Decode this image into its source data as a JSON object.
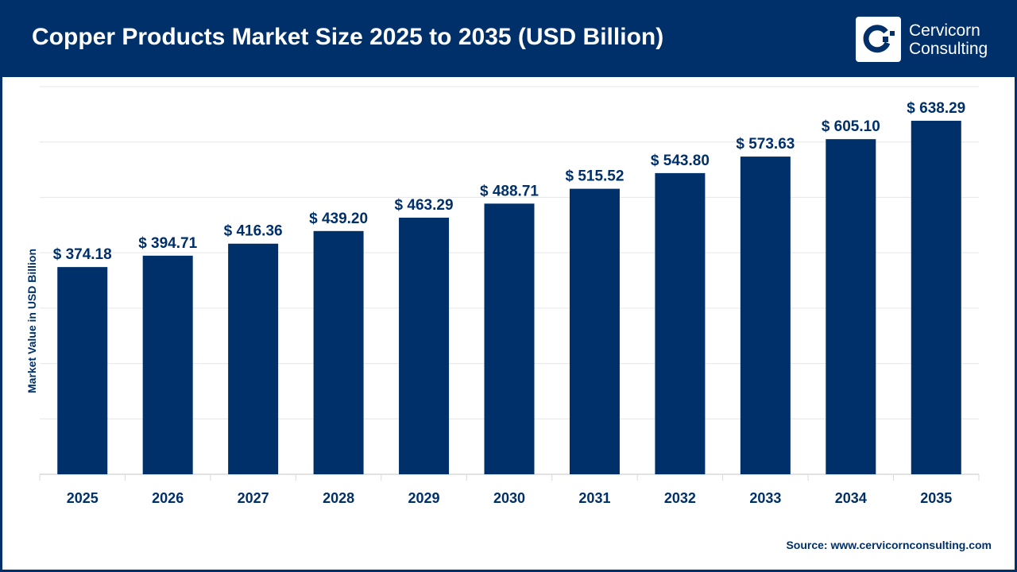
{
  "header": {
    "title": "Copper Products Market Size 2025 to 2035 (USD Billion)",
    "logo_line1": "Cervicorn",
    "logo_line2": "Consulting"
  },
  "source": "Source: www.cervicornconsulting.com",
  "colors": {
    "primary": "#00306a",
    "grid": "#d9d9d9"
  },
  "chart_data": {
    "type": "bar",
    "title": "Copper Products Market Size 2025 to 2035 (USD Billion)",
    "xlabel": "",
    "ylabel": "Market Value in USD Billion",
    "categories": [
      "2025",
      "2026",
      "2027",
      "2028",
      "2029",
      "2030",
      "2031",
      "2032",
      "2033",
      "2034",
      "2035"
    ],
    "values": [
      374.18,
      394.71,
      416.36,
      439.2,
      463.29,
      488.71,
      515.52,
      543.8,
      573.63,
      605.1,
      638.29
    ],
    "data_labels": [
      "$ 374.18",
      "$ 394.71",
      "$ 416.36",
      "$ 439.20",
      "$ 463.29",
      "$ 488.71",
      "$ 515.52",
      "$ 543.80",
      "$ 573.63",
      "$ 605.10",
      "$ 638.29"
    ],
    "ylim": [
      0,
      700
    ],
    "grid": true,
    "legend": "none"
  }
}
